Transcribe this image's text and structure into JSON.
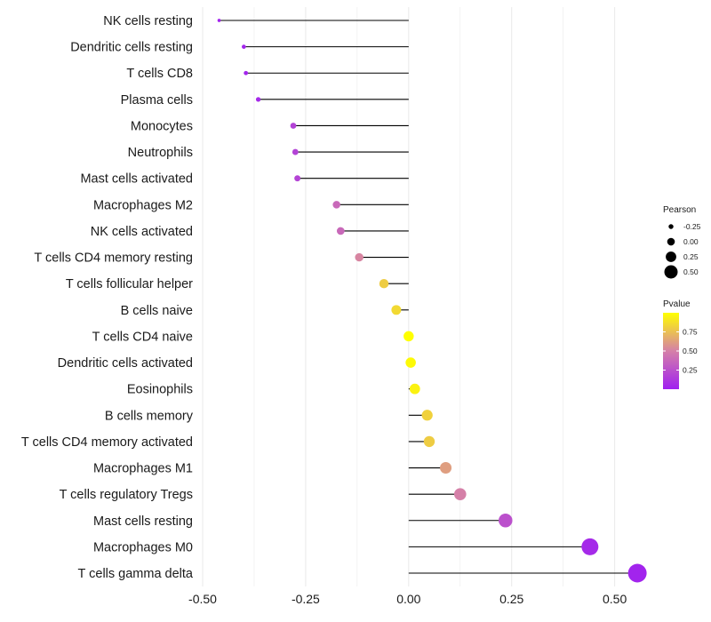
{
  "chart_data": {
    "type": "lollipop",
    "categories": [
      "NK cells resting",
      "Dendritic cells resting",
      "T cells CD8",
      "Plasma cells",
      "Monocytes",
      "Neutrophils",
      "Mast cells activated",
      "Macrophages M2",
      "NK cells activated",
      "T cells CD4 memory resting",
      "T cells follicular helper",
      "B cells naive",
      "T cells CD4 naive",
      "Dendritic cells activated",
      "Eosinophils",
      "B cells memory",
      "T cells CD4 memory activated",
      "Macrophages M1",
      "T cells regulatory  Tregs ",
      "Mast cells resting",
      "Macrophages M0",
      "T cells gamma delta"
    ],
    "pearson": [
      -0.46,
      -0.4,
      -0.395,
      -0.365,
      -0.28,
      -0.275,
      -0.27,
      -0.175,
      -0.165,
      -0.12,
      -0.06,
      -0.03,
      0.0,
      0.005,
      0.015,
      0.045,
      0.05,
      0.09,
      0.125,
      0.235,
      0.44,
      0.555
    ],
    "pvalue": [
      0.02,
      0.03,
      0.03,
      0.05,
      0.18,
      0.18,
      0.19,
      0.38,
      0.38,
      0.52,
      0.8,
      0.85,
      1.0,
      0.98,
      0.95,
      0.82,
      0.8,
      0.62,
      0.5,
      0.25,
      0.05,
      0.02
    ],
    "xlim": [
      -0.5,
      0.6
    ],
    "x_ticks": [
      -0.5,
      -0.25,
      0.0,
      0.25,
      0.5
    ],
    "x_tick_labels": [
      "-0.50",
      "-0.25",
      "0.00",
      "0.25",
      "0.50"
    ],
    "xlabel": "",
    "ylabel": "",
    "grid": true,
    "legend_size": {
      "title": "Pearson",
      "values": [
        -0.25,
        0.0,
        0.25,
        0.5
      ],
      "labels": [
        "-0.25",
        "0.00",
        "0.25",
        "0.50"
      ]
    },
    "legend_color": {
      "title": "Pvalue",
      "ticks": [
        0.75,
        0.5,
        0.25
      ],
      "labels": [
        "0.75",
        "0.50",
        "0.25"
      ],
      "range": [
        0.0,
        1.0
      ],
      "low_color": "#a020f0",
      "high_color": "#ffff00"
    },
    "legend_position": "right",
    "colors": {
      "stem": "#000000",
      "grid": "#ebebeb",
      "mid_color": "#d580a8"
    }
  }
}
